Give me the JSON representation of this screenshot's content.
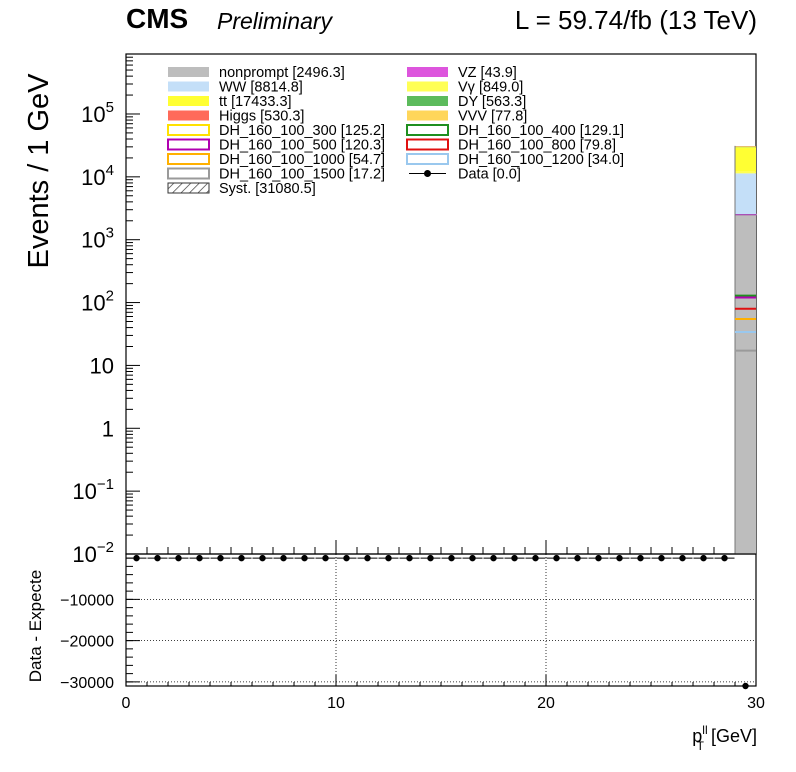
{
  "header": {
    "experiment": "CMS",
    "status": "Preliminary",
    "lumi": "L = 59.74/fb (13 TeV)"
  },
  "chart_data": {
    "type": "bar",
    "stacked": true,
    "log_y": true,
    "ylabel": "Events / 1 GeV",
    "xlabel_main": "p",
    "xlabel_sup": "ll",
    "xlabel_sub": "T",
    "xlabel_unit": "[GeV]",
    "xlim": [
      0,
      30
    ],
    "ylim": [
      0.01,
      900000
    ],
    "grid": false,
    "legend_position": "top",
    "y_ticks": [
      {
        "v": 100000,
        "base": "10",
        "exp": "5"
      },
      {
        "v": 10000,
        "base": "10",
        "exp": "4"
      },
      {
        "v": 1000,
        "base": "10",
        "exp": "3"
      },
      {
        "v": 100,
        "base": "10",
        "exp": "2"
      },
      {
        "v": 10,
        "base": "10",
        "exp": ""
      },
      {
        "v": 1,
        "base": "1",
        "exp": ""
      },
      {
        "v": 0.1,
        "base": "10",
        "exp": "−1"
      },
      {
        "v": 0.01,
        "base": "10",
        "exp": "−2"
      }
    ],
    "x_ticks": [
      "0",
      "10",
      "20",
      "30"
    ],
    "bin": [
      29,
      30
    ],
    "stack": [
      {
        "name": "nonprompt [2496.3]",
        "color": "#bdbdbd",
        "value": 2496.3
      },
      {
        "name": "VZ [43.9]",
        "color": "#dd55dd",
        "value": 43.9
      },
      {
        "name": "WW [8814.8]",
        "color": "#c4dff8",
        "value": 8814.8
      },
      {
        "name": "Vγ [849.0]",
        "color": "#ffff55",
        "value": 849.0
      },
      {
        "name": "tt [17433.3]",
        "color": "#ffff33",
        "value": 17433.3
      },
      {
        "name": "DY [563.3]",
        "color": "#5cbb5c",
        "value": 563.3
      },
      {
        "name": "Higgs [530.3]",
        "color": "#ff6a5a",
        "value": 530.3
      },
      {
        "name": "VVV [77.8]",
        "color": "#ffd65a",
        "value": 77.8
      }
    ],
    "signals": [
      {
        "name": "DH_160_100_300 [125.2]",
        "color": "#ffe100",
        "value": 125.2
      },
      {
        "name": "DH_160_100_400 [129.1]",
        "color": "#1f8f1f",
        "value": 129.1
      },
      {
        "name": "DH_160_100_500 [120.3]",
        "color": "#b000b0",
        "value": 120.3
      },
      {
        "name": "DH_160_100_800 [79.8]",
        "color": "#e01010",
        "value": 79.8
      },
      {
        "name": "DH_160_100_1000 [54.7]",
        "color": "#ffb000",
        "value": 54.7
      },
      {
        "name": "DH_160_100_1200 [34.0]",
        "color": "#9ac8ee",
        "value": 34.0
      },
      {
        "name": "DH_160_100_1500 [17.2]",
        "color": "#9a9a9a",
        "value": 17.2
      }
    ],
    "syst": {
      "name": "Syst. [31080.5]",
      "value": 31080.5
    },
    "data": {
      "name": "Data [0.0]",
      "value": 0.0
    },
    "ratio": {
      "ylabel": "Data - Expecte",
      "ylim": [
        -31000,
        1000
      ],
      "y_ticks": [
        {
          "v": -10000,
          "label": "−10000"
        },
        {
          "v": -20000,
          "label": "−20000"
        },
        {
          "v": -30000,
          "label": "−30000"
        }
      ],
      "grid": true,
      "points_x": [
        0.5,
        1.5,
        2.5,
        3.5,
        4.5,
        5.5,
        6.5,
        7.5,
        8.5,
        9.5,
        10.5,
        11.5,
        12.5,
        13.5,
        14.5,
        15.5,
        16.5,
        17.5,
        18.5,
        19.5,
        20.5,
        21.5,
        22.5,
        23.5,
        24.5,
        25.5,
        26.5,
        27.5,
        28.5,
        29.5
      ],
      "points_y": [
        0,
        0,
        0,
        0,
        0,
        0,
        0,
        0,
        0,
        0,
        0,
        0,
        0,
        0,
        0,
        0,
        0,
        0,
        0,
        0,
        0,
        0,
        0,
        0,
        0,
        0,
        0,
        0,
        0,
        -31080.5
      ]
    }
  }
}
